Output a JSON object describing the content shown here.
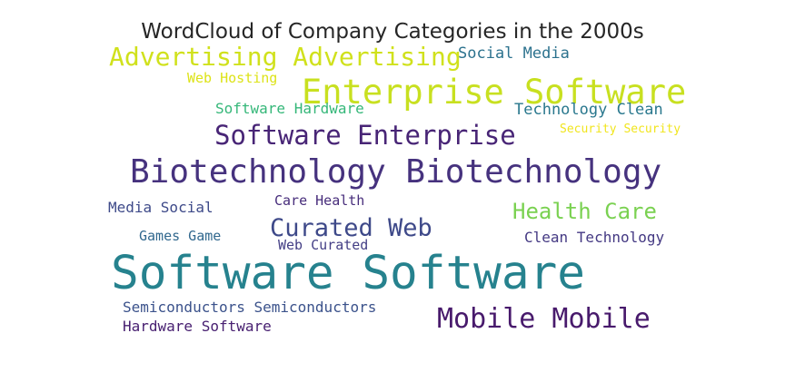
{
  "chart_data": {
    "type": "wordcloud",
    "title": "WordCloud of Company Categories in the 2000s",
    "words": [
      {
        "text": "Software Software",
        "color": "#26828e"
      },
      {
        "text": "Biotechnology Biotechnology",
        "color": "#46327e"
      },
      {
        "text": "Enterprise Software",
        "color": "#c8e020"
      },
      {
        "text": "Advertising Advertising",
        "color": "#d0e11c"
      },
      {
        "text": "Software Enterprise",
        "color": "#482576"
      },
      {
        "text": "Mobile Mobile",
        "color": "#481a6c"
      },
      {
        "text": "Curated Web",
        "color": "#3e4989"
      },
      {
        "text": "Health Care",
        "color": "#7ad151"
      },
      {
        "text": "Social Media",
        "color": "#2c728e"
      },
      {
        "text": "Technology Clean",
        "color": "#2a788e"
      },
      {
        "text": "Software Hardware",
        "color": "#35b779"
      },
      {
        "text": "Web Hosting",
        "color": "#dde318"
      },
      {
        "text": "Security Security",
        "color": "#f1e51d"
      },
      {
        "text": "Media Social",
        "color": "#3e4a89"
      },
      {
        "text": "Care Health",
        "color": "#472d7b"
      },
      {
        "text": "Games Game",
        "color": "#31688e"
      },
      {
        "text": "Web Curated",
        "color": "#433e85"
      },
      {
        "text": "Clean Technology",
        "color": "#443983"
      },
      {
        "text": "Semiconductors Semiconductors",
        "color": "#3b528b"
      },
      {
        "text": "Hardware Software",
        "color": "#482071"
      }
    ]
  }
}
